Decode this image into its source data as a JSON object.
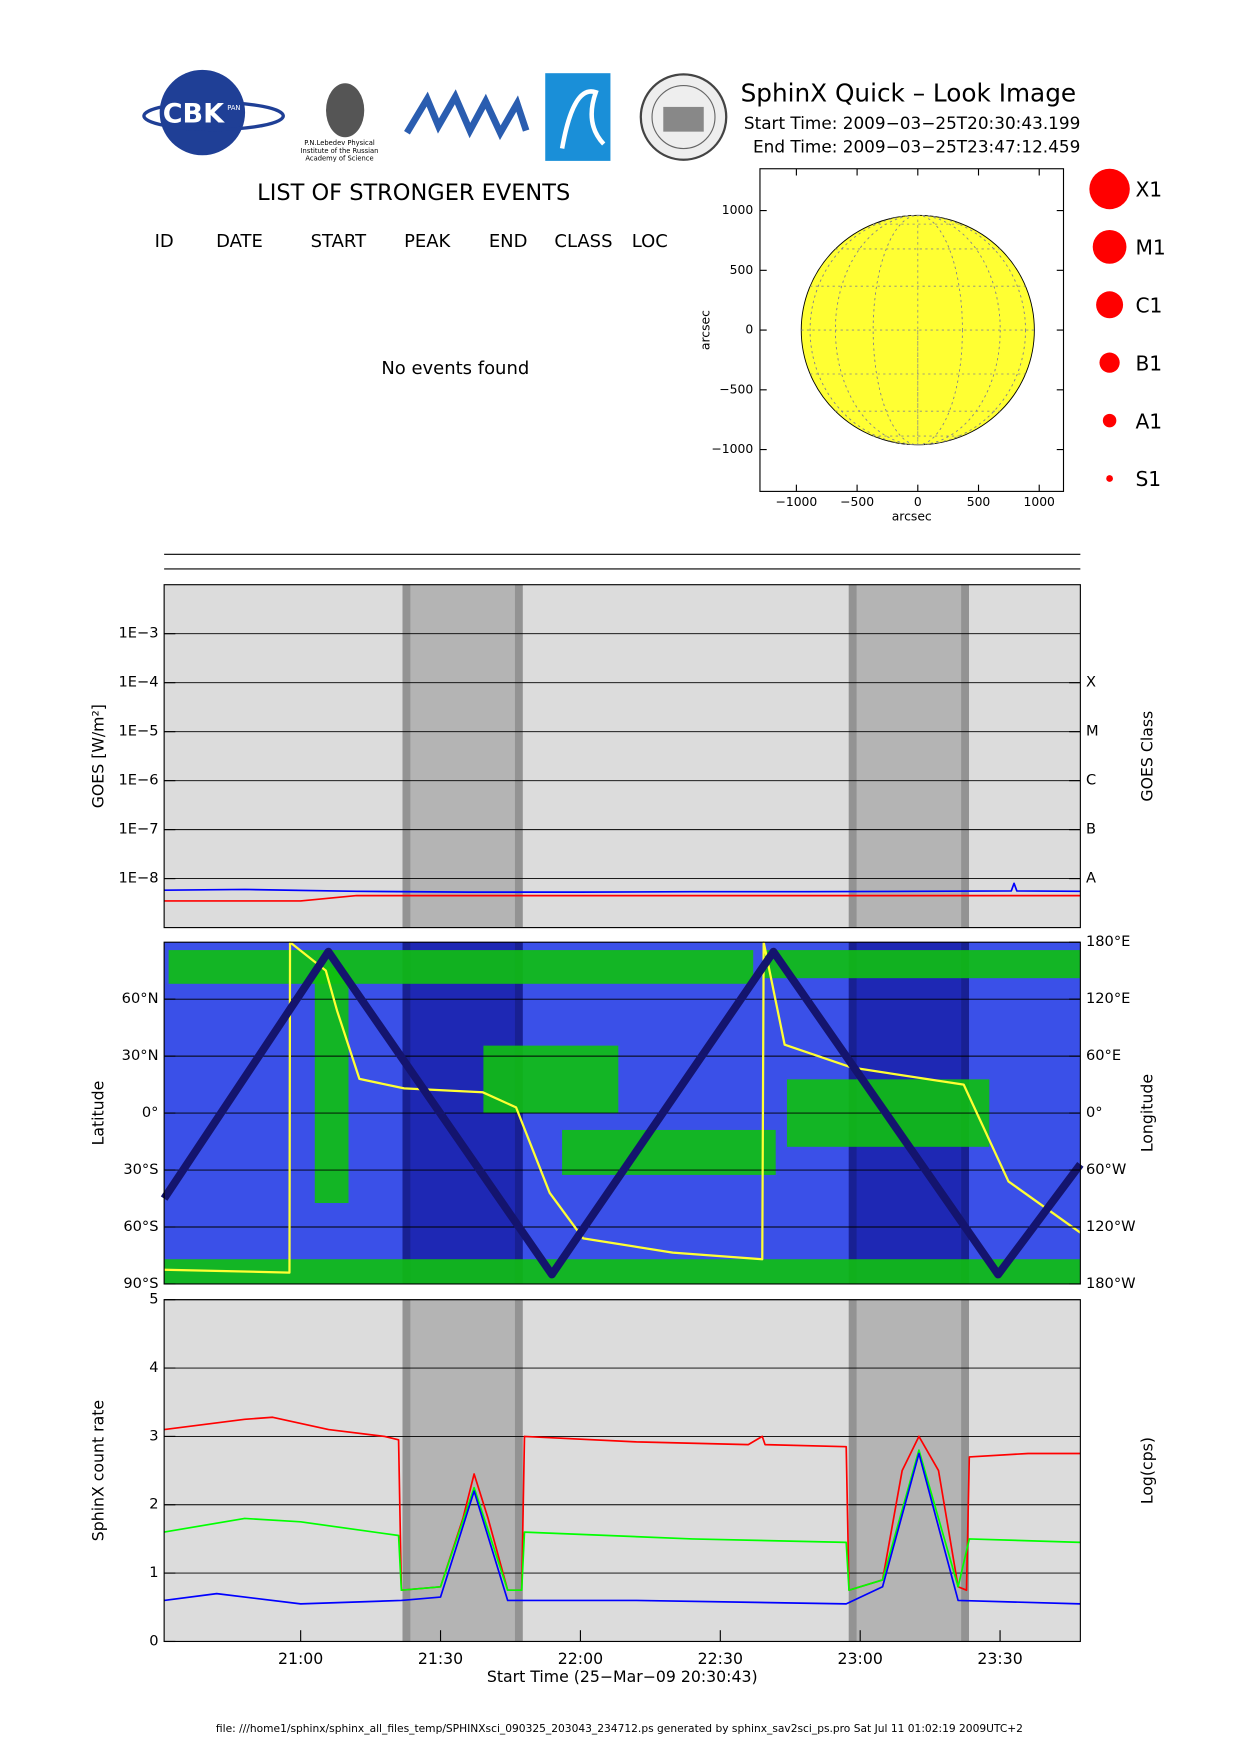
{
  "header": {
    "title": "SphinX Quick – Look Image",
    "start_time": "Start Time: 2009−03−25T20:30:43.199",
    "end_time": "End Time: 2009−03−25T23:47:12.459"
  },
  "logos": {
    "cbk": "CBK",
    "pan": "PAN",
    "lebedev": [
      "P.N.Lebedev Physical",
      "Institute of the Russian",
      "Academy of Science"
    ]
  },
  "events": {
    "title": "LIST OF STRONGER EVENTS",
    "columns": [
      "ID",
      "DATE",
      "START",
      "PEAK",
      "END",
      "CLASS",
      "LOC"
    ],
    "message": "No events found"
  },
  "flare_legend": {
    "labels": [
      "X1",
      "M1",
      "C1",
      "B1",
      "A1",
      "S1"
    ],
    "color": "#ff0000"
  },
  "footer": "file: ///home1/sphinx/sphinx_all_files_temp/SPHINXsci_090325_203043_234712.ps generated by sphinx_sav2sci_ps.pro Sat Jul 11 01:02:19 2009UTC+2",
  "chart_data": [
    {
      "type": "disk",
      "xlabel": "arcsec",
      "ylabel": "arcsec",
      "xlim": [
        -1300,
        1200
      ],
      "ylim": [
        -1350,
        1350
      ],
      "xticks": [
        {
          "value": -1000,
          "label": "−1000"
        },
        {
          "value": -500,
          "label": "−500"
        },
        0,
        500,
        1000
      ],
      "yticks": [
        {
          "value": -1000,
          "label": "−1000"
        },
        {
          "value": -500,
          "label": "−500"
        },
        0,
        500,
        1000
      ],
      "sun_radius": 960,
      "color": "#ffff33"
    },
    {
      "type": "line",
      "ylabel": "GOES [W/m²]",
      "y2label": "GOES Class",
      "log_scale": true,
      "xlim": [
        20.512,
        23.787
      ],
      "ylim": [
        1e-09,
        0.01
      ],
      "yticks": [
        {
          "value": 1e-08,
          "label": "1E−8"
        },
        {
          "value": 1e-07,
          "label": "1E−7"
        },
        {
          "value": 1e-06,
          "label": "1E−6"
        },
        {
          "value": 1e-05,
          "label": "1E−5"
        },
        {
          "value": 0.0001,
          "label": "1E−4"
        },
        {
          "value": 0.001,
          "label": "1E−3"
        }
      ],
      "y2lim": [
        1e-09,
        0.01
      ],
      "y2ticks": [
        {
          "value": 1e-08,
          "label": "A"
        },
        {
          "value": 1e-07,
          "label": "B"
        },
        {
          "value": 1e-06,
          "label": "C"
        },
        {
          "value": 1e-05,
          "label": "M"
        },
        {
          "value": 0.0001,
          "label": "X"
        }
      ],
      "grid": true,
      "background": "#dcdcdc",
      "night_color": "#b4b4b4",
      "night_intervals": [
        [
          21.364,
          21.794
        ],
        [
          22.959,
          23.389
        ]
      ],
      "series": [
        {
          "color": "#ff0000",
          "x": [
            20.512,
            21.0,
            21.2,
            22.0,
            23.0,
            23.787
          ],
          "values": [
            3.5e-09,
            3.5e-09,
            4.5e-09,
            4.5e-09,
            4.5e-09,
            4.5e-09
          ]
        },
        {
          "color": "#0000ff",
          "x": [
            20.512,
            20.8,
            21.2,
            21.6,
            22.0,
            22.4,
            22.8,
            23.2,
            23.54,
            23.55,
            23.56,
            23.787
          ],
          "values": [
            5.8e-09,
            6e-09,
            5.5e-09,
            5.3e-09,
            5.3e-09,
            5.4e-09,
            5.4e-09,
            5.5e-09,
            5.6e-09,
            8e-09,
            5.6e-09,
            5.5e-09
          ]
        }
      ]
    },
    {
      "type": "line",
      "ylabel": "Latitude",
      "y2label": "Longitude",
      "xlim": [
        20.512,
        23.787
      ],
      "ylim": [
        -90,
        90
      ],
      "yticks": [
        {
          "value": -90,
          "label": "90°S"
        },
        {
          "value": -60,
          "label": "60°S"
        },
        {
          "value": -30,
          "label": "30°S"
        },
        {
          "value": 0,
          "label": "0°"
        },
        {
          "value": 30,
          "label": "30°N"
        },
        {
          "value": 60,
          "label": "60°N"
        }
      ],
      "y2lim": [
        -180,
        180
      ],
      "y2ticks": [
        {
          "value": -180,
          "label": "180°W"
        },
        {
          "value": -120,
          "label": "120°W"
        },
        {
          "value": -60,
          "label": "60°W"
        },
        {
          "value": 0,
          "label": "0°"
        },
        {
          "value": 60,
          "label": "60°E"
        },
        {
          "value": 120,
          "label": "120°E"
        },
        {
          "value": 180,
          "label": "180°E"
        }
      ],
      "grid": true,
      "background": "#3a50e8",
      "night_color": "#1e28b4",
      "night_intervals": [
        [
          21.364,
          21.794
        ],
        [
          22.959,
          23.389
        ]
      ],
      "series": [
        {
          "color": "#ffff33",
          "axis": "y2",
          "x": [
            20.512,
            20.96,
            20.962,
            21.09,
            21.13,
            21.21,
            21.37,
            21.65,
            21.77,
            21.89,
            22.01,
            22.33,
            22.65,
            22.655,
            22.73,
            22.97,
            23.37,
            23.53,
            23.787
          ],
          "values": [
            -165,
            -168,
            180,
            150,
            108,
            36,
            26,
            22,
            6,
            -84,
            -132,
            -147,
            -154,
            180,
            72,
            48,
            30,
            -72,
            -126
          ]
        },
        {
          "color": "#14146e",
          "x": [
            20.512,
            21.099,
            21.898,
            22.69,
            23.493,
            23.787
          ],
          "values": [
            -45,
            85,
            -85,
            85,
            -85,
            -27
          ]
        }
      ]
    },
    {
      "type": "line",
      "ylabel": "SphinX count rate",
      "y2label": "Log(cps)",
      "xlabel": "Start Time (25−Mar−09 20:30:43)",
      "xlim": [
        20.512,
        23.787
      ],
      "ylim": [
        0,
        5
      ],
      "yticks": [
        0,
        1,
        2,
        3,
        4,
        5
      ],
      "xticks": [
        {
          "value": 21.0,
          "label": "21:00"
        },
        {
          "value": 21.5,
          "label": "21:30"
        },
        {
          "value": 22.0,
          "label": "22:00"
        },
        {
          "value": 22.5,
          "label": "22:30"
        },
        {
          "value": 23.0,
          "label": "23:00"
        },
        {
          "value": 23.5,
          "label": "23:30"
        }
      ],
      "grid": true,
      "background": "#dcdcdc",
      "night_color": "#b4b4b4",
      "night_intervals": [
        [
          21.364,
          21.794
        ],
        [
          22.959,
          23.389
        ]
      ],
      "series": [
        {
          "color": "#ff0000",
          "x": [
            20.512,
            20.8,
            20.9,
            21.1,
            21.3,
            21.35,
            21.36,
            21.5,
            21.58,
            21.62,
            21.67,
            21.74,
            21.79,
            21.8,
            22.2,
            22.6,
            22.65,
            22.66,
            22.95,
            22.96,
            23.08,
            23.15,
            23.21,
            23.28,
            23.35,
            23.38,
            23.39,
            23.6,
            23.787
          ],
          "values": [
            3.1,
            3.25,
            3.28,
            3.1,
            3.0,
            2.95,
            0.75,
            0.8,
            1.8,
            2.45,
            1.8,
            0.75,
            0.75,
            3.0,
            2.92,
            2.88,
            3.0,
            2.88,
            2.85,
            0.75,
            0.9,
            2.5,
            3.0,
            2.5,
            0.8,
            0.75,
            2.7,
            2.75,
            2.75
          ]
        },
        {
          "color": "#00ff00",
          "x": [
            20.512,
            20.8,
            21.0,
            21.35,
            21.36,
            21.5,
            21.62,
            21.74,
            21.79,
            21.8,
            22.4,
            22.95,
            22.96,
            23.08,
            23.21,
            23.35,
            23.39,
            23.787
          ],
          "values": [
            1.6,
            1.8,
            1.75,
            1.55,
            0.75,
            0.8,
            2.25,
            0.75,
            0.75,
            1.6,
            1.5,
            1.45,
            0.75,
            0.9,
            2.8,
            0.8,
            1.5,
            1.45
          ]
        },
        {
          "color": "#0000ff",
          "x": [
            20.512,
            20.7,
            21.0,
            21.36,
            21.5,
            21.62,
            21.74,
            22.2,
            22.95,
            23.08,
            23.21,
            23.35,
            23.787
          ],
          "values": [
            0.6,
            0.7,
            0.55,
            0.6,
            0.65,
            2.2,
            0.6,
            0.6,
            0.55,
            0.8,
            2.75,
            0.6,
            0.55
          ]
        }
      ]
    }
  ]
}
